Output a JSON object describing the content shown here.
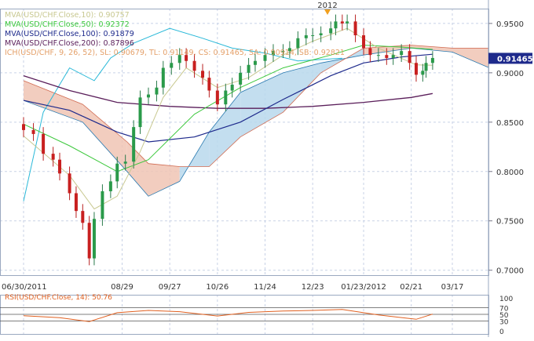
{
  "chart_data": [
    {
      "type": "candlestick",
      "instrument": "USD/CHF",
      "x_tick_labels": [
        "06/30/2011",
        "08/29",
        "09/27",
        "10/26",
        "11/24",
        "12/23",
        "01/23/2012",
        "02/21",
        "03/17"
      ],
      "x_ticks": [
        "2011-06-30",
        "2011-08-29",
        "2011-09-27",
        "2011-10-26",
        "2011-11-24",
        "2011-12-23",
        "2012-01-23",
        "2012-02-21",
        "2012-03-17"
      ],
      "year_marker": {
        "label": "2012",
        "date": "2012-01-01"
      },
      "y_tick_labels": [
        "0.9500",
        "0.9000",
        "0.8500",
        "0.8000",
        "0.7500",
        "0.7000"
      ],
      "ylim": [
        0.695,
        0.965
      ],
      "current_price": "0.91465",
      "legend": [
        {
          "label": "MVA(USD/CHF.Close,10): 0.90757",
          "color": "#c8c890"
        },
        {
          "label": "MVA(USD/CHF.Close,50): 0.92372",
          "color": "#3cc83c"
        },
        {
          "label": "MVA(USD/CHF.Close,100): 0.91879",
          "color": "#1e2a8c"
        },
        {
          "label": "MVA(USD/CHF.Close,200): 0.87896",
          "color": "#5a1e5a"
        },
        {
          "label": "ICH(USD/CHF, 9, 26, 52), SL: 0.90679, TL: 0.91149, CS: 0.91465, SA: 0.90914, SB: 0.92821",
          "color": "#e09050"
        }
      ],
      "closes": [
        {
          "x": "2011-06-30",
          "y": 0.842
        },
        {
          "x": "2011-07-06",
          "y": 0.838
        },
        {
          "x": "2011-07-12",
          "y": 0.818
        },
        {
          "x": "2011-07-18",
          "y": 0.812
        },
        {
          "x": "2011-07-22",
          "y": 0.798
        },
        {
          "x": "2011-07-28",
          "y": 0.778
        },
        {
          "x": "2011-08-01",
          "y": 0.76
        },
        {
          "x": "2011-08-05",
          "y": 0.748
        },
        {
          "x": "2011-08-09",
          "y": 0.712
        },
        {
          "x": "2011-08-12",
          "y": 0.752
        },
        {
          "x": "2011-08-17",
          "y": 0.78
        },
        {
          "x": "2011-08-22",
          "y": 0.79
        },
        {
          "x": "2011-08-26",
          "y": 0.808
        },
        {
          "x": "2011-08-31",
          "y": 0.81
        },
        {
          "x": "2011-09-05",
          "y": 0.845
        },
        {
          "x": "2011-09-09",
          "y": 0.875
        },
        {
          "x": "2011-09-14",
          "y": 0.878
        },
        {
          "x": "2011-09-19",
          "y": 0.885
        },
        {
          "x": "2011-09-23",
          "y": 0.905
        },
        {
          "x": "2011-09-28",
          "y": 0.91
        },
        {
          "x": "2011-10-03",
          "y": 0.918
        },
        {
          "x": "2011-10-07",
          "y": 0.912
        },
        {
          "x": "2011-10-12",
          "y": 0.902
        },
        {
          "x": "2011-10-17",
          "y": 0.895
        },
        {
          "x": "2011-10-21",
          "y": 0.882
        },
        {
          "x": "2011-10-26",
          "y": 0.868
        },
        {
          "x": "2011-10-31",
          "y": 0.882
        },
        {
          "x": "2011-11-04",
          "y": 0.888
        },
        {
          "x": "2011-11-09",
          "y": 0.9
        },
        {
          "x": "2011-11-14",
          "y": 0.908
        },
        {
          "x": "2011-11-18",
          "y": 0.912
        },
        {
          "x": "2011-11-24",
          "y": 0.918
        },
        {
          "x": "2011-11-29",
          "y": 0.922
        },
        {
          "x": "2011-12-05",
          "y": 0.922
        },
        {
          "x": "2011-12-09",
          "y": 0.925
        },
        {
          "x": "2011-12-14",
          "y": 0.935
        },
        {
          "x": "2011-12-19",
          "y": 0.938
        },
        {
          "x": "2011-12-23",
          "y": 0.938
        },
        {
          "x": "2011-12-28",
          "y": 0.94
        },
        {
          "x": "2012-01-03",
          "y": 0.945
        },
        {
          "x": "2012-01-06",
          "y": 0.952
        },
        {
          "x": "2012-01-10",
          "y": 0.95
        },
        {
          "x": "2012-01-13",
          "y": 0.952
        },
        {
          "x": "2012-01-18",
          "y": 0.938
        },
        {
          "x": "2012-01-23",
          "y": 0.925
        },
        {
          "x": "2012-01-27",
          "y": 0.918
        },
        {
          "x": "2012-02-01",
          "y": 0.918
        },
        {
          "x": "2012-02-06",
          "y": 0.915
        },
        {
          "x": "2012-02-10",
          "y": 0.918
        },
        {
          "x": "2012-02-15",
          "y": 0.922
        },
        {
          "x": "2012-02-20",
          "y": 0.91
        },
        {
          "x": "2012-02-24",
          "y": 0.898
        },
        {
          "x": "2012-02-28",
          "y": 0.902
        },
        {
          "x": "2012-03-01",
          "y": 0.91
        },
        {
          "x": "2012-03-05",
          "y": 0.915
        }
      ],
      "mva10": [
        {
          "x": "2011-06-30",
          "y": 0.836
        },
        {
          "x": "2011-07-28",
          "y": 0.796
        },
        {
          "x": "2011-08-12",
          "y": 0.762
        },
        {
          "x": "2011-08-26",
          "y": 0.775
        },
        {
          "x": "2011-09-09",
          "y": 0.82
        },
        {
          "x": "2011-09-23",
          "y": 0.875
        },
        {
          "x": "2011-10-07",
          "y": 0.905
        },
        {
          "x": "2011-10-26",
          "y": 0.885
        },
        {
          "x": "2011-11-14",
          "y": 0.895
        },
        {
          "x": "2011-12-05",
          "y": 0.918
        },
        {
          "x": "2011-12-23",
          "y": 0.932
        },
        {
          "x": "2012-01-13",
          "y": 0.945
        },
        {
          "x": "2012-02-01",
          "y": 0.925
        },
        {
          "x": "2012-02-24",
          "y": 0.908
        },
        {
          "x": "2012-03-05",
          "y": 0.9076
        }
      ],
      "mva50": [
        {
          "x": "2011-06-30",
          "y": 0.848
        },
        {
          "x": "2011-07-28",
          "y": 0.826
        },
        {
          "x": "2011-08-26",
          "y": 0.8
        },
        {
          "x": "2011-09-14",
          "y": 0.812
        },
        {
          "x": "2011-10-12",
          "y": 0.858
        },
        {
          "x": "2011-11-09",
          "y": 0.885
        },
        {
          "x": "2011-12-05",
          "y": 0.905
        },
        {
          "x": "2012-01-03",
          "y": 0.918
        },
        {
          "x": "2012-01-23",
          "y": 0.928
        },
        {
          "x": "2012-02-15",
          "y": 0.926
        },
        {
          "x": "2012-03-05",
          "y": 0.9237
        }
      ],
      "mva100": [
        {
          "x": "2011-06-30",
          "y": 0.872
        },
        {
          "x": "2011-07-28",
          "y": 0.862
        },
        {
          "x": "2011-08-26",
          "y": 0.84
        },
        {
          "x": "2011-09-14",
          "y": 0.83
        },
        {
          "x": "2011-10-12",
          "y": 0.835
        },
        {
          "x": "2011-11-09",
          "y": 0.85
        },
        {
          "x": "2011-12-05",
          "y": 0.873
        },
        {
          "x": "2012-01-03",
          "y": 0.897
        },
        {
          "x": "2012-01-23",
          "y": 0.91
        },
        {
          "x": "2012-02-15",
          "y": 0.916
        },
        {
          "x": "2012-03-05",
          "y": 0.9188
        }
      ],
      "mva200": [
        {
          "x": "2011-06-30",
          "y": 0.897
        },
        {
          "x": "2011-07-28",
          "y": 0.882
        },
        {
          "x": "2011-08-26",
          "y": 0.87
        },
        {
          "x": "2011-09-27",
          "y": 0.866
        },
        {
          "x": "2011-10-26",
          "y": 0.864
        },
        {
          "x": "2011-11-24",
          "y": 0.864
        },
        {
          "x": "2011-12-23",
          "y": 0.866
        },
        {
          "x": "2012-01-23",
          "y": 0.87
        },
        {
          "x": "2012-02-21",
          "y": 0.875
        },
        {
          "x": "2012-03-05",
          "y": 0.879
        }
      ],
      "senkou_a": [
        {
          "x": "2011-06-30",
          "y": 0.872
        },
        {
          "x": "2011-08-05",
          "y": 0.85
        },
        {
          "x": "2011-09-01",
          "y": 0.8
        },
        {
          "x": "2011-09-14",
          "y": 0.775
        },
        {
          "x": "2011-10-03",
          "y": 0.79
        },
        {
          "x": "2011-10-21",
          "y": 0.84
        },
        {
          "x": "2011-11-09",
          "y": 0.88
        },
        {
          "x": "2011-12-05",
          "y": 0.9
        },
        {
          "x": "2011-12-28",
          "y": 0.91
        },
        {
          "x": "2012-01-23",
          "y": 0.918
        },
        {
          "x": "2012-02-21",
          "y": 0.925
        },
        {
          "x": "2012-03-17",
          "y": 0.921
        },
        {
          "x": "2012-04-10",
          "y": 0.904
        }
      ],
      "senkou_b": [
        {
          "x": "2011-06-30",
          "y": 0.892
        },
        {
          "x": "2011-08-05",
          "y": 0.868
        },
        {
          "x": "2011-09-01",
          "y": 0.83
        },
        {
          "x": "2011-09-14",
          "y": 0.808
        },
        {
          "x": "2011-10-03",
          "y": 0.805
        },
        {
          "x": "2011-10-21",
          "y": 0.805
        },
        {
          "x": "2011-11-09",
          "y": 0.835
        },
        {
          "x": "2011-12-05",
          "y": 0.86
        },
        {
          "x": "2011-12-28",
          "y": 0.9
        },
        {
          "x": "2012-01-23",
          "y": 0.925
        },
        {
          "x": "2012-02-21",
          "y": 0.928
        },
        {
          "x": "2012-03-17",
          "y": 0.925
        },
        {
          "x": "2012-04-10",
          "y": 0.925
        }
      ],
      "chikou_span": [
        {
          "x": "2011-06-30",
          "y": 0.77
        },
        {
          "x": "2011-07-12",
          "y": 0.86
        },
        {
          "x": "2011-07-28",
          "y": 0.905
        },
        {
          "x": "2011-08-12",
          "y": 0.892
        },
        {
          "x": "2011-08-22",
          "y": 0.915
        },
        {
          "x": "2011-09-05",
          "y": 0.93
        },
        {
          "x": "2011-09-27",
          "y": 0.945
        },
        {
          "x": "2011-10-17",
          "y": 0.935
        },
        {
          "x": "2011-11-04",
          "y": 0.925
        },
        {
          "x": "2011-11-24",
          "y": 0.92
        },
        {
          "x": "2011-12-14",
          "y": 0.912
        },
        {
          "x": "2012-01-10",
          "y": 0.9147
        }
      ]
    },
    {
      "type": "line",
      "legend": "RSI(USD/CHF.Close, 14): 50.76",
      "series_color": "#e06020",
      "y_tick_labels": [
        "100",
        "70",
        "50",
        "30",
        "0"
      ],
      "ylim": [
        0,
        100
      ],
      "values": [
        {
          "x": "2011-06-30",
          "y": 46
        },
        {
          "x": "2011-07-22",
          "y": 40
        },
        {
          "x": "2011-08-09",
          "y": 28
        },
        {
          "x": "2011-08-26",
          "y": 55
        },
        {
          "x": "2011-09-14",
          "y": 62
        },
        {
          "x": "2011-10-03",
          "y": 58
        },
        {
          "x": "2011-10-26",
          "y": 45
        },
        {
          "x": "2011-11-14",
          "y": 56
        },
        {
          "x": "2011-12-05",
          "y": 60
        },
        {
          "x": "2011-12-23",
          "y": 62
        },
        {
          "x": "2012-01-10",
          "y": 65
        },
        {
          "x": "2012-02-01",
          "y": 48
        },
        {
          "x": "2012-02-24",
          "y": 35
        },
        {
          "x": "2012-03-05",
          "y": 50.76
        }
      ]
    }
  ]
}
